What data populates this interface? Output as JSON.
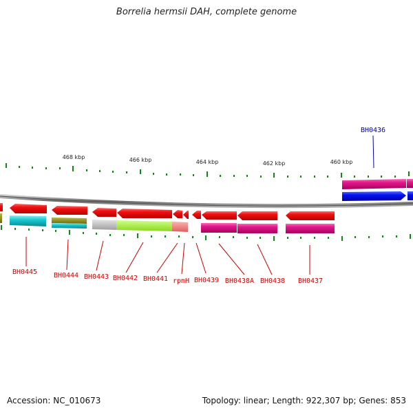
{
  "title": "Borrelia hermsii DAH, complete genome",
  "footer": {
    "accession": "Accession: NC_010673",
    "summary": "Topology: linear; Length: 922,307 bp; Genes: 853"
  },
  "scale_labels": [
    "468 kbp",
    "466 kbp",
    "464 kbp",
    "462 kbp",
    "460 kbp"
  ],
  "gene_labels_bottom": [
    "BH0445",
    "BH0444",
    "BH0443",
    "BH0442",
    "BH0441",
    "rpmH",
    "BH0439",
    "BH0438A",
    "BH0438",
    "BH0437"
  ],
  "gene_labels_top": [
    "BH0436"
  ],
  "colors": {
    "gene_red": "#ee1111",
    "cds_magenta": "#e0188a",
    "cds_cyan": "#18c8d0",
    "cds_olive": "#8a8a1a",
    "cds_gray": "#bbbbbb",
    "cds_lime": "#a8f040",
    "cds_salmon": "#f08080",
    "gene_blue": "#0010ee",
    "label_red": "#cc0000",
    "label_blue": "#0000aa",
    "tick_green": "#118811",
    "backbone_gray": "#777777"
  }
}
